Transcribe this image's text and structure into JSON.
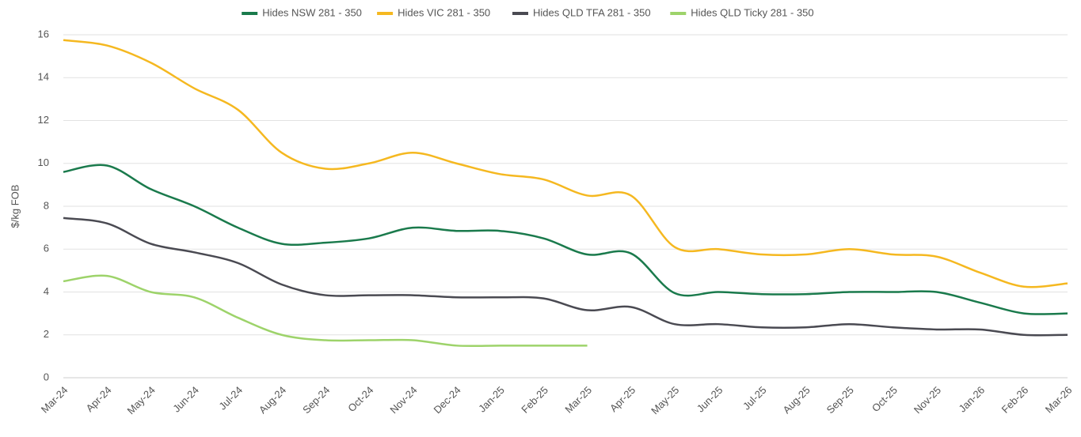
{
  "chart_data": {
    "type": "line",
    "y_label": "$/kg FOB",
    "categories": [
      "Mar-24",
      "Apr-24",
      "May-24",
      "Jun-24",
      "Jul-24",
      "Aug-24",
      "Sep-24",
      "Oct-24",
      "Nov-24",
      "Dec-24",
      "Jan-25",
      "Feb-25",
      "Mar-25",
      "Apr-25",
      "May-25",
      "Jun-25",
      "Jul-25",
      "Aug-25",
      "Sep-25",
      "Oct-25",
      "Nov-25",
      "Jan-26",
      "Feb-26",
      "Mar-26"
    ],
    "series": [
      {
        "name": "Hides NSW 281 - 350",
        "color": "#1a7a4c",
        "values": [
          9.6,
          9.9,
          8.8,
          8.0,
          7.0,
          6.25,
          6.3,
          6.5,
          7.0,
          6.85,
          6.85,
          6.5,
          5.75,
          5.8,
          3.95,
          4.0,
          3.9,
          3.9,
          4.0,
          4.0,
          4.0,
          3.5,
          3.0,
          3.0
        ]
      },
      {
        "name": "Hides VIC 281 - 350",
        "color": "#f5b820",
        "values": [
          15.75,
          15.5,
          14.7,
          13.5,
          12.5,
          10.5,
          9.75,
          10.0,
          10.5,
          10.0,
          9.5,
          9.25,
          8.5,
          8.5,
          6.1,
          6.0,
          5.75,
          5.75,
          6.0,
          5.75,
          5.65,
          4.9,
          4.25,
          4.4
        ]
      },
      {
        "name": "Hides QLD TFA 281 - 350",
        "color": "#4a4a52",
        "values": [
          7.45,
          7.2,
          6.25,
          5.85,
          5.35,
          4.35,
          3.85,
          3.85,
          3.85,
          3.75,
          3.75,
          3.7,
          3.15,
          3.3,
          2.5,
          2.5,
          2.35,
          2.35,
          2.5,
          2.35,
          2.25,
          2.25,
          2.0,
          2.0
        ]
      },
      {
        "name": "Hides QLD Ticky 281 - 350",
        "color": "#9dd36a",
        "values": [
          4.5,
          4.75,
          4.0,
          3.75,
          2.8,
          2.0,
          1.75,
          1.75,
          1.75,
          1.5,
          1.5,
          1.5,
          1.5,
          null,
          null,
          null,
          null,
          null,
          null,
          null,
          null,
          null,
          null,
          null
        ]
      }
    ],
    "ylim": [
      0,
      16
    ],
    "yticks": [
      0,
      2,
      4,
      6,
      8,
      10,
      12,
      14,
      16
    ],
    "grid": true,
    "legend": "top"
  }
}
